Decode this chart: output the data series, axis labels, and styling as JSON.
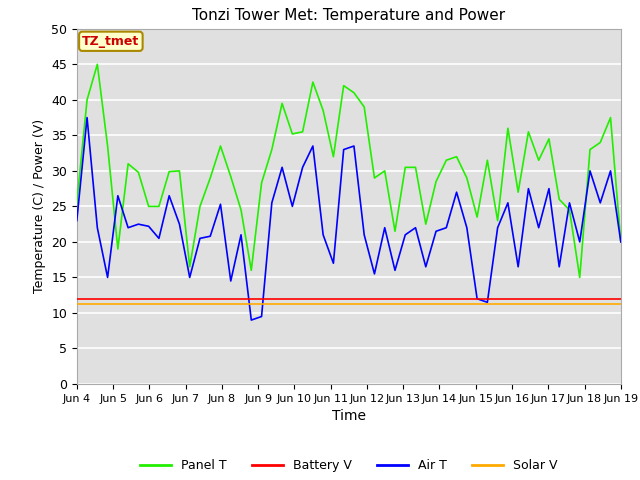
{
  "title": "Tonzi Tower Met: Temperature and Power",
  "xlabel": "Time",
  "ylabel": "Temperature (C) / Power (V)",
  "ylim": [
    0,
    50
  ],
  "yticks": [
    0,
    5,
    10,
    15,
    20,
    25,
    30,
    35,
    40,
    45,
    50
  ],
  "xtick_labels": [
    "Jun 4",
    "Jun 5",
    "Jun 6",
    "Jun 7",
    "Jun 8",
    "Jun 9",
    "Jun 10",
    "Jun 11",
    "Jun 12",
    "Jun 13",
    "Jun 14",
    "Jun 15",
    "Jun 16",
    "Jun 17",
    "Jun 18",
    "Jun 19"
  ],
  "bg_color": "#e0e0e0",
  "panel_color": "#22ee00",
  "battery_color": "#ff0000",
  "air_color": "#0000ff",
  "solar_color": "#ffaa00",
  "annotation_text": "TZ_tmet",
  "annotation_color": "#cc0000",
  "annotation_bg": "#ffffcc",
  "panel_t": [
    25.5,
    40.0,
    45.0,
    33.5,
    19.0,
    31.0,
    29.8,
    25.0,
    25.0,
    29.9,
    30.0,
    16.5,
    25.0,
    29.0,
    33.5,
    29.2,
    24.5,
    16.0,
    28.3,
    33.0,
    39.5,
    35.2,
    35.5,
    42.5,
    38.5,
    32.0,
    42.0,
    41.0,
    39.0,
    29.0,
    30.0,
    21.5,
    30.5,
    30.5,
    22.5,
    28.5,
    31.5,
    32.0,
    29.0,
    23.5,
    31.5,
    23.0,
    36.0,
    27.0,
    35.5,
    31.5,
    34.5,
    26.0,
    24.5,
    15.0,
    33.0,
    34.0,
    37.5,
    20.0
  ],
  "air_t": [
    23.0,
    37.5,
    22.0,
    15.0,
    26.5,
    22.0,
    22.5,
    22.2,
    20.5,
    26.5,
    22.5,
    15.0,
    20.5,
    20.8,
    25.3,
    14.5,
    21.0,
    9.0,
    9.5,
    25.5,
    30.5,
    25.0,
    30.5,
    33.5,
    21.0,
    17.0,
    33.0,
    33.5,
    21.0,
    15.5,
    22.0,
    16.0,
    21.0,
    22.0,
    16.5,
    21.5,
    22.0,
    27.0,
    22.0,
    12.0,
    11.5,
    22.0,
    25.5,
    16.5,
    27.5,
    22.0,
    27.5,
    16.5,
    25.5,
    20.0,
    30.0,
    25.5,
    30.0,
    20.0
  ],
  "battery_v": [
    12.0,
    12.0,
    12.0,
    12.0,
    12.0,
    12.0,
    12.0,
    12.0,
    12.0,
    12.0,
    12.0,
    12.0,
    12.0,
    12.0,
    12.0,
    12.0,
    12.0,
    12.0,
    12.0,
    12.0,
    12.0,
    12.0,
    12.0,
    12.0,
    12.0,
    12.0,
    12.0,
    12.0,
    12.0,
    12.0,
    12.0,
    12.0,
    12.0,
    12.0,
    12.0,
    12.0,
    12.0,
    12.0,
    12.0,
    12.0,
    12.0,
    12.0,
    12.0,
    12.0,
    12.0,
    12.0,
    12.0,
    12.0,
    12.0,
    12.0,
    12.0,
    12.0,
    12.0,
    12.0
  ],
  "solar_v": [
    11.3,
    11.3,
    11.3,
    11.3,
    11.3,
    11.3,
    11.3,
    11.3,
    11.3,
    11.3,
    11.3,
    11.3,
    11.3,
    11.3,
    11.3,
    11.3,
    11.3,
    11.3,
    11.3,
    11.3,
    11.3,
    11.3,
    11.3,
    11.3,
    11.3,
    11.3,
    11.3,
    11.3,
    11.3,
    11.3,
    11.3,
    11.3,
    11.3,
    11.3,
    11.3,
    11.3,
    11.3,
    11.3,
    11.3,
    11.3,
    11.3,
    11.3,
    11.3,
    11.3,
    11.3,
    11.3,
    11.3,
    11.3,
    11.3,
    11.3,
    11.3,
    11.3,
    11.3,
    11.3
  ],
  "figsize": [
    6.4,
    4.8
  ],
  "dpi": 100
}
